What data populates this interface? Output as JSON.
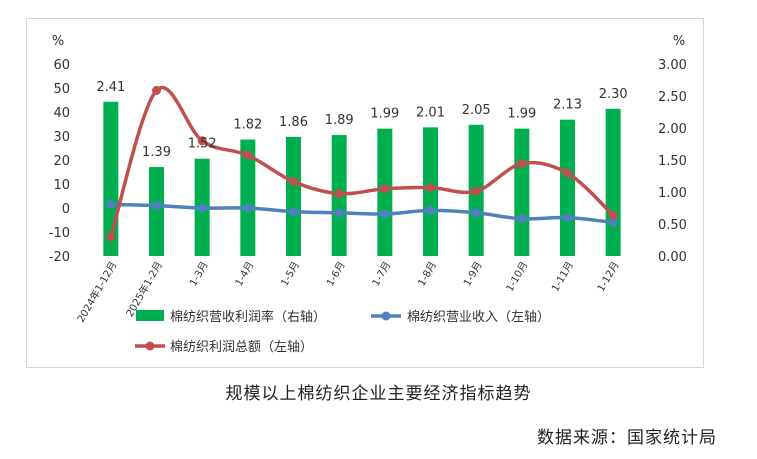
{
  "chart_data": {
    "type": "bar",
    "caption": "规模以上棉纺织企业主要经济指标趋势",
    "source": "数据来源：国家统计局",
    "left_axis": {
      "unit": "%",
      "ticks": [
        60,
        50,
        40,
        30,
        20,
        10,
        0,
        -10,
        -20
      ],
      "ylim": [
        -20,
        60
      ]
    },
    "right_axis": {
      "unit": "%",
      "ticks": [
        "3.00",
        "2.50",
        "2.00",
        "1.50",
        "1.00",
        "0.50",
        "0.00"
      ],
      "ylim": [
        0,
        3
      ]
    },
    "categories": [
      "2024年1-12月",
      "2025年1-2月",
      "1-3月",
      "1-4月",
      "1-5月",
      "1-6月",
      "1-7月",
      "1-8月",
      "1-9月",
      "1-10月",
      "1-11月",
      "1-12月"
    ],
    "series": [
      {
        "name": "棉纺织营收利润率（右轴）",
        "type": "bar",
        "axis": "right",
        "color": "#00b050",
        "values": [
          2.41,
          1.39,
          1.52,
          1.82,
          1.86,
          1.89,
          1.99,
          2.01,
          2.05,
          1.99,
          2.13,
          2.3
        ],
        "labels": [
          "2.41",
          "1.39",
          "1.52",
          "1.82",
          "1.86",
          "1.89",
          "1.99",
          "2.01",
          "2.05",
          "1.99",
          "2.13",
          "2.30"
        ]
      },
      {
        "name": "棉纺织营业收入（左轴）",
        "type": "line",
        "axis": "left",
        "color": "#4f81bd",
        "values": [
          1.5,
          1.0,
          0.0,
          0.0,
          -1.5,
          -2.0,
          -2.5,
          -1.0,
          -2.0,
          -4.5,
          -4.0,
          -6.0
        ]
      },
      {
        "name": "棉纺织利润总额（左轴）",
        "type": "line",
        "axis": "left",
        "color": "#c0504d",
        "values": [
          -12,
          49,
          28,
          22,
          11,
          6,
          8,
          8.5,
          7,
          18.5,
          14.5,
          -3
        ]
      }
    ]
  }
}
